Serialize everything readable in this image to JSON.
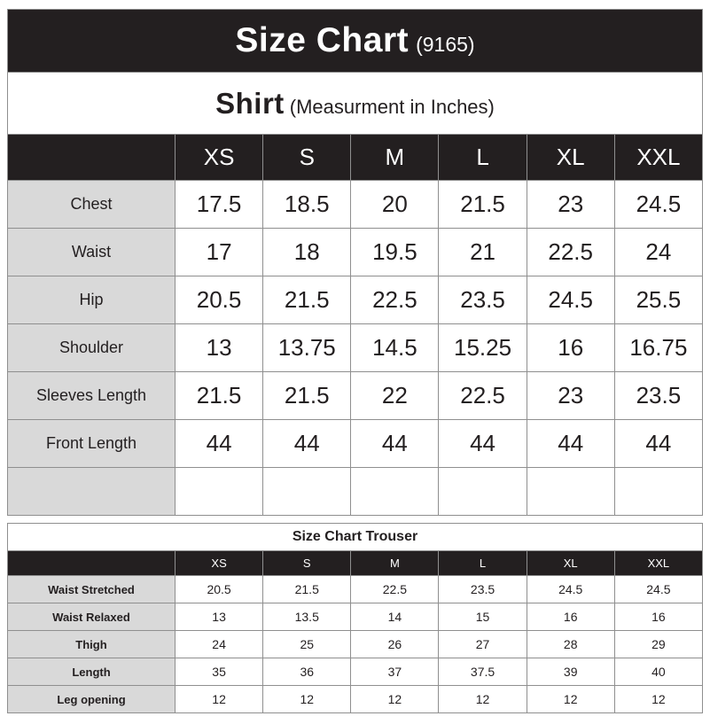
{
  "header": {
    "title": "Size Chart",
    "code": "(9165)"
  },
  "colors": {
    "black": "#231f20",
    "row_label_bg": "#d9d9d9",
    "border": "#8f8f8f",
    "background": "#ffffff"
  },
  "chart_data": [
    {
      "type": "table",
      "name": "shirt-size-chart",
      "title": "Shirt",
      "subtitle": "(Measurment in Inches)",
      "columns": [
        "XS",
        "S",
        "M",
        "L",
        "XL",
        "XXL"
      ],
      "rows": [
        {
          "label": "Chest",
          "values": [
            "17.5",
            "18.5",
            "20",
            "21.5",
            "23",
            "24.5"
          ]
        },
        {
          "label": "Waist",
          "values": [
            "17",
            "18",
            "19.5",
            "21",
            "22.5",
            "24"
          ]
        },
        {
          "label": "Hip",
          "values": [
            "20.5",
            "21.5",
            "22.5",
            "23.5",
            "24.5",
            "25.5"
          ]
        },
        {
          "label": "Shoulder",
          "values": [
            "13",
            "13.75",
            "14.5",
            "15.25",
            "16",
            "16.75"
          ]
        },
        {
          "label": "Sleeves Length",
          "values": [
            "21.5",
            "21.5",
            "22",
            "22.5",
            "23",
            "23.5"
          ]
        },
        {
          "label": "Front Length",
          "values": [
            "44",
            "44",
            "44",
            "44",
            "44",
            "44"
          ]
        },
        {
          "label": "",
          "values": [
            "",
            "",
            "",
            "",
            "",
            ""
          ]
        }
      ]
    },
    {
      "type": "table",
      "name": "trouser-size-chart",
      "title": "Size Chart Trouser",
      "columns": [
        "XS",
        "S",
        "M",
        "L",
        "XL",
        "XXL"
      ],
      "rows": [
        {
          "label": "Waist Stretched",
          "values": [
            "20.5",
            "21.5",
            "22.5",
            "23.5",
            "24.5",
            "24.5"
          ]
        },
        {
          "label": "Waist Relaxed",
          "values": [
            "13",
            "13.5",
            "14",
            "15",
            "16",
            "16"
          ]
        },
        {
          "label": "Thigh",
          "values": [
            "24",
            "25",
            "26",
            "27",
            "28",
            "29"
          ]
        },
        {
          "label": "Length",
          "values": [
            "35",
            "36",
            "37",
            "37.5",
            "39",
            "40"
          ]
        },
        {
          "label": "Leg opening",
          "values": [
            "12",
            "12",
            "12",
            "12",
            "12",
            "12"
          ]
        }
      ]
    }
  ]
}
